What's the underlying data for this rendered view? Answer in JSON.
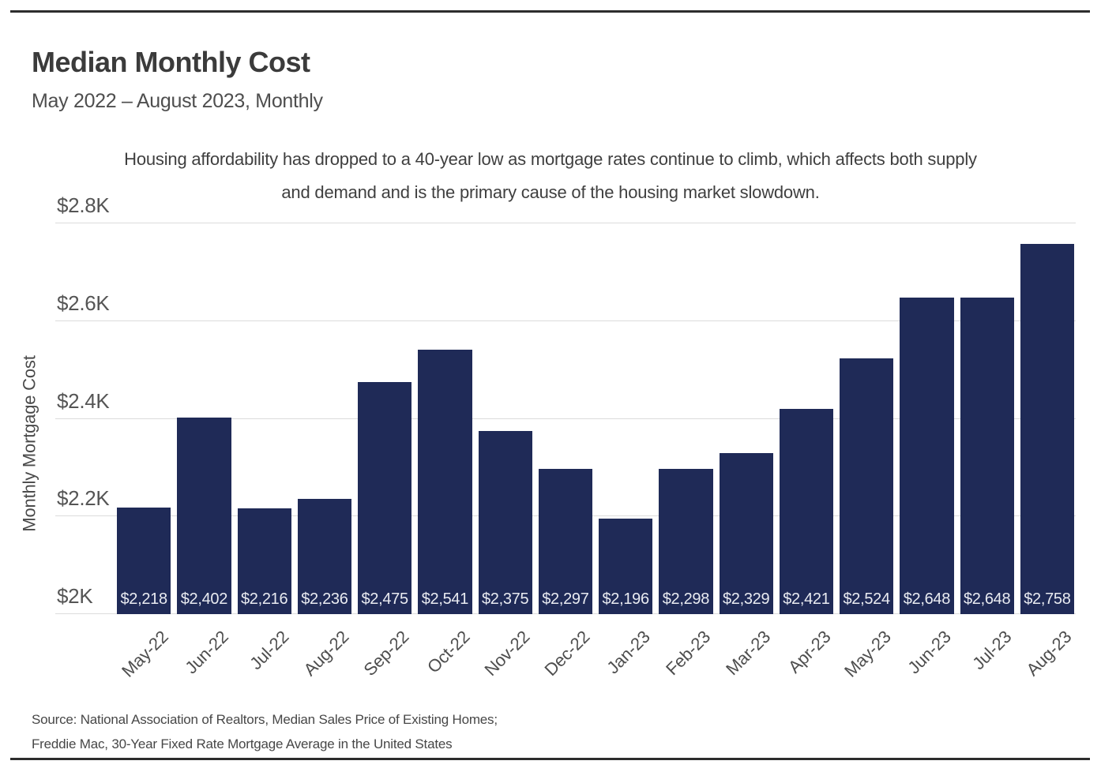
{
  "header": {
    "title": "Median Monthly Cost",
    "subtitle": "May 2022 – August 2023, Monthly"
  },
  "annotation": {
    "line1": "Housing affordability has dropped to a 40-year low as mortgage rates continue to climb, which affects both supply",
    "line2": "and demand and is the primary cause of the housing market slowdown."
  },
  "footer": {
    "source_line1": "Source: National Association of Realtors, Median Sales Price of Existing Homes;",
    "source_line2": "Freddie Mac, 30-Year Fixed Rate Mortgage Average in the United States"
  },
  "chart_data": {
    "type": "bar",
    "title": "Median Monthly Cost",
    "subtitle": "May 2022 – August 2023, Monthly",
    "xlabel": "",
    "ylabel": "Monthly Mortgage Cost",
    "categories": [
      "May-22",
      "Jun-22",
      "Jul-22",
      "Aug-22",
      "Sep-22",
      "Oct-22",
      "Nov-22",
      "Dec-22",
      "Jan-23",
      "Feb-23",
      "Mar-23",
      "Apr-23",
      "May-23",
      "Jun-23",
      "Jul-23",
      "Aug-23"
    ],
    "values": [
      2218,
      2402,
      2216,
      2236,
      2475,
      2541,
      2375,
      2297,
      2196,
      2298,
      2329,
      2421,
      2524,
      2648,
      2648,
      2758
    ],
    "value_labels": [
      "$2,218",
      "$2,402",
      "$2,216",
      "$2,236",
      "$2,475",
      "$2,541",
      "$2,375",
      "$2,297",
      "$2,196",
      "$2,298",
      "$2,329",
      "$2,421",
      "$2,524",
      "$2,648",
      "$2,648",
      "$2,758"
    ],
    "ylim": [
      2000,
      2800
    ],
    "yticks": [
      "$2K",
      "$2.2K",
      "$2.4K",
      "$2.6K",
      "$2.8K"
    ],
    "grid": true,
    "legend": "none",
    "colors": {
      "bar": "#1f2a57",
      "bar_value_label": "#e9ebf1",
      "gridline": "#dcdcdc",
      "axis_text": "#555555",
      "title_text": "#3b3b3b",
      "rule": "#2d2d2d"
    }
  }
}
